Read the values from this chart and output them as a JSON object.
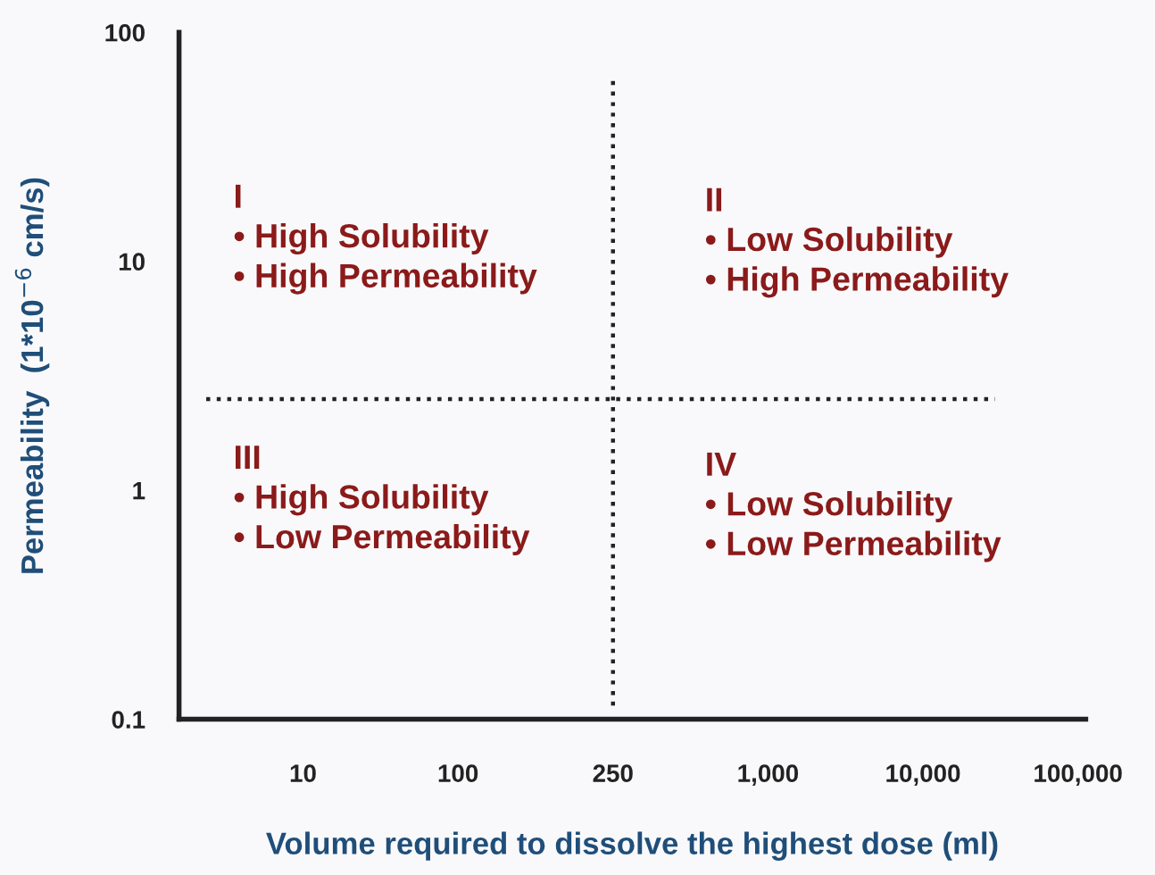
{
  "chart_data": {
    "type": "scatter",
    "values": [
      null,
      null,
      null,
      null,
      null,
      null
    ],
    "xlabel": "Volume required to dissolve the highest dose (ml)",
    "ylabel": "Permeability  (1*10$^{−6}$ cm/s)",
    "categories": [
      "10",
      "100",
      "250",
      "1,000",
      "10,000",
      "100,000"
    ],
    "log": "y",
    "ylim": [
      0.1,
      100
    ],
    "yticks": [
      0.1,
      1,
      10,
      100
    ],
    "ref_lines": [
      {
        "axis": "x",
        "value": "250",
        "line_style": "dotted",
        "color": "#222222"
      },
      {
        "axis": "y",
        "value": 2.5,
        "line_style": "dotted",
        "color": "#222222"
      }
    ],
    "annotations": [
      "I\n• High Solubility\n• High Permeability",
      "II\n• Low Solubility\n• High Permeability",
      "III\n• High Solubility\n• Low Permeability",
      "IV\n• Low Solubility\n• Low Permeability"
    ],
    "grid": false,
    "legend": false
  }
}
